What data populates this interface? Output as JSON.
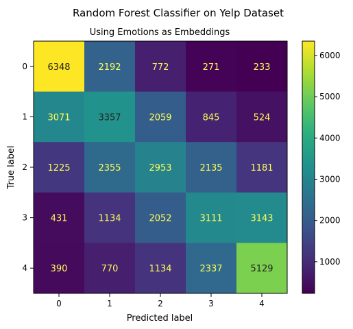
{
  "chart_data": {
    "type": "heatmap",
    "title": "Random Forest Classifier on Yelp Dataset",
    "subtitle": "Using Emotions as Embeddings",
    "xlabel": "Predicted label",
    "ylabel": "True label",
    "x_ticks": [
      "0",
      "1",
      "2",
      "3",
      "4"
    ],
    "y_ticks": [
      "0",
      "1",
      "2",
      "3",
      "4"
    ],
    "matrix": [
      [
        6348,
        2192,
        772,
        271,
        233
      ],
      [
        3071,
        3357,
        2059,
        845,
        524
      ],
      [
        1225,
        2355,
        2953,
        2135,
        1181
      ],
      [
        431,
        1134,
        2052,
        3111,
        3143
      ],
      [
        390,
        770,
        1134,
        2337,
        5129
      ]
    ],
    "colormap": "viridis",
    "color_range": [
      233,
      6348
    ],
    "colorbar_ticks": [
      "1000",
      "2000",
      "3000",
      "4000",
      "5000",
      "6000"
    ],
    "grid": false,
    "label_colors": {
      "dark_cell": "#ffff55",
      "light_cell": "#222222"
    }
  }
}
